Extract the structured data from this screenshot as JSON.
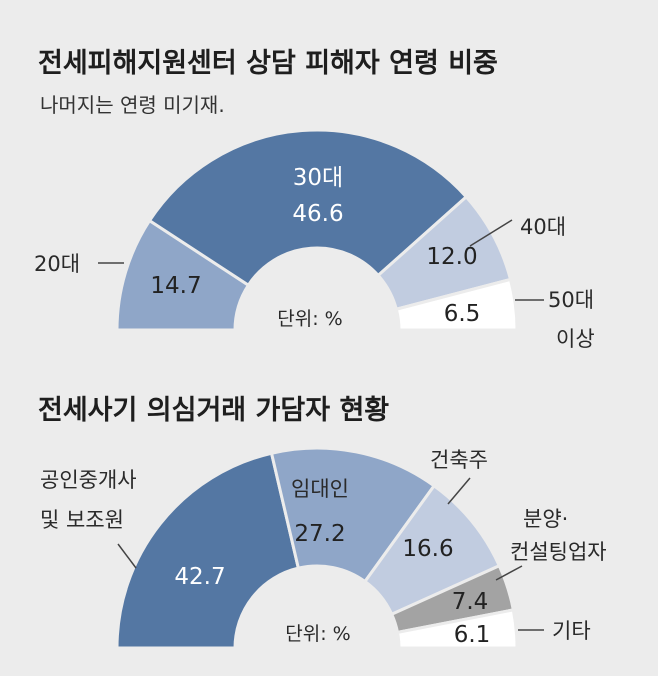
{
  "chart_data": [
    {
      "type": "pie",
      "title": "전세피해지원센터 상담 피해자 연령 비중",
      "subtitle": "나머지는 연령 미기재.",
      "unit_label": "단위: %",
      "slices": [
        {
          "name": "20대",
          "value": 14.7,
          "color": "#8fa6c8",
          "text_color": "#222222"
        },
        {
          "name": "30대",
          "value": 46.6,
          "color": "#5477a3",
          "text_color": "#ffffff"
        },
        {
          "name": "40대",
          "value": 12.0,
          "color": "#c1cce0",
          "text_color": "#222222"
        },
        {
          "name": "50대 이상",
          "value": 6.5,
          "color": "#ffffff",
          "text_color": "#222222"
        }
      ]
    },
    {
      "type": "pie",
      "title": "전세사기 의심거래 가담자 현황",
      "unit_label": "단위: %",
      "slices": [
        {
          "name": "공인중개사 및 보조원",
          "value": 42.7,
          "color": "#5477a3",
          "text_color": "#ffffff"
        },
        {
          "name": "임대인",
          "value": 27.2,
          "color": "#8fa6c8",
          "text_color": "#222222"
        },
        {
          "name": "건축주",
          "value": 16.6,
          "color": "#c1cce0",
          "text_color": "#222222"
        },
        {
          "name": "분양·컨설팅업자",
          "value": 7.4,
          "color": "#a3a3a3",
          "text_color": "#222222"
        },
        {
          "name": "기타",
          "value": 6.1,
          "color": "#ffffff",
          "text_color": "#222222"
        }
      ]
    }
  ]
}
